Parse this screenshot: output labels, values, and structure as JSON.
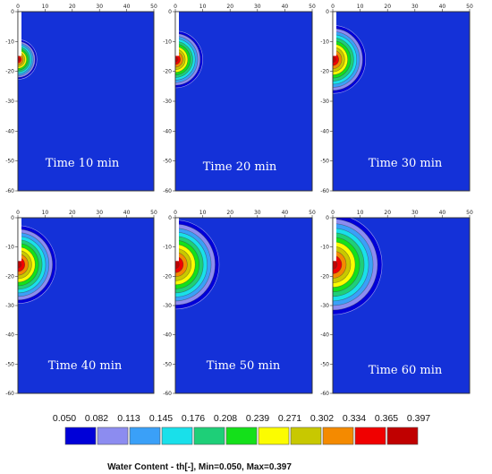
{
  "chart_data": [
    {
      "type": "heatmap",
      "title": "Time 10 min",
      "source_depth": -16,
      "front_radius": 7,
      "levels_reached": 12
    },
    {
      "type": "heatmap",
      "title": "Time 20 min",
      "source_depth": -16,
      "front_radius": 10,
      "levels_reached": 12
    },
    {
      "type": "heatmap",
      "title": "Time 30 min",
      "source_depth": -16,
      "front_radius": 12,
      "levels_reached": 12
    },
    {
      "type": "heatmap",
      "title": "Time 40 min",
      "source_depth": -16,
      "front_radius": 14,
      "levels_reached": 12
    },
    {
      "type": "heatmap",
      "title": "Time 50 min",
      "source_depth": -16,
      "front_radius": 16,
      "levels_reached": 12
    },
    {
      "type": "heatmap",
      "title": "Time 60 min",
      "source_depth": -16,
      "front_radius": 18,
      "levels_reached": 12
    }
  ],
  "axes": {
    "x_ticks": [
      "0",
      "10",
      "20",
      "30",
      "40",
      "50"
    ],
    "y_ticks": [
      "0",
      "-10",
      "-20",
      "-30",
      "-40",
      "-50",
      "-60"
    ],
    "xlim": [
      0,
      50
    ],
    "ylim": [
      -60,
      0
    ],
    "grid": false
  },
  "legend": {
    "values": [
      "0.050",
      "0.082",
      "0.113",
      "0.145",
      "0.176",
      "0.208",
      "0.239",
      "0.271",
      "0.302",
      "0.334",
      "0.365",
      "0.397"
    ],
    "colors": [
      "#0000d8",
      "#8c8cf0",
      "#3aa0f8",
      "#19e0ea",
      "#1ecf78",
      "#14e01a",
      "#fcfc00",
      "#c8c800",
      "#f48a00",
      "#f00000",
      "#c00000"
    ],
    "title": "Water Content  - th[-], Min=0.050, Max=0.397"
  },
  "domain_background": "#1431d8",
  "min_color": "#1431d8"
}
